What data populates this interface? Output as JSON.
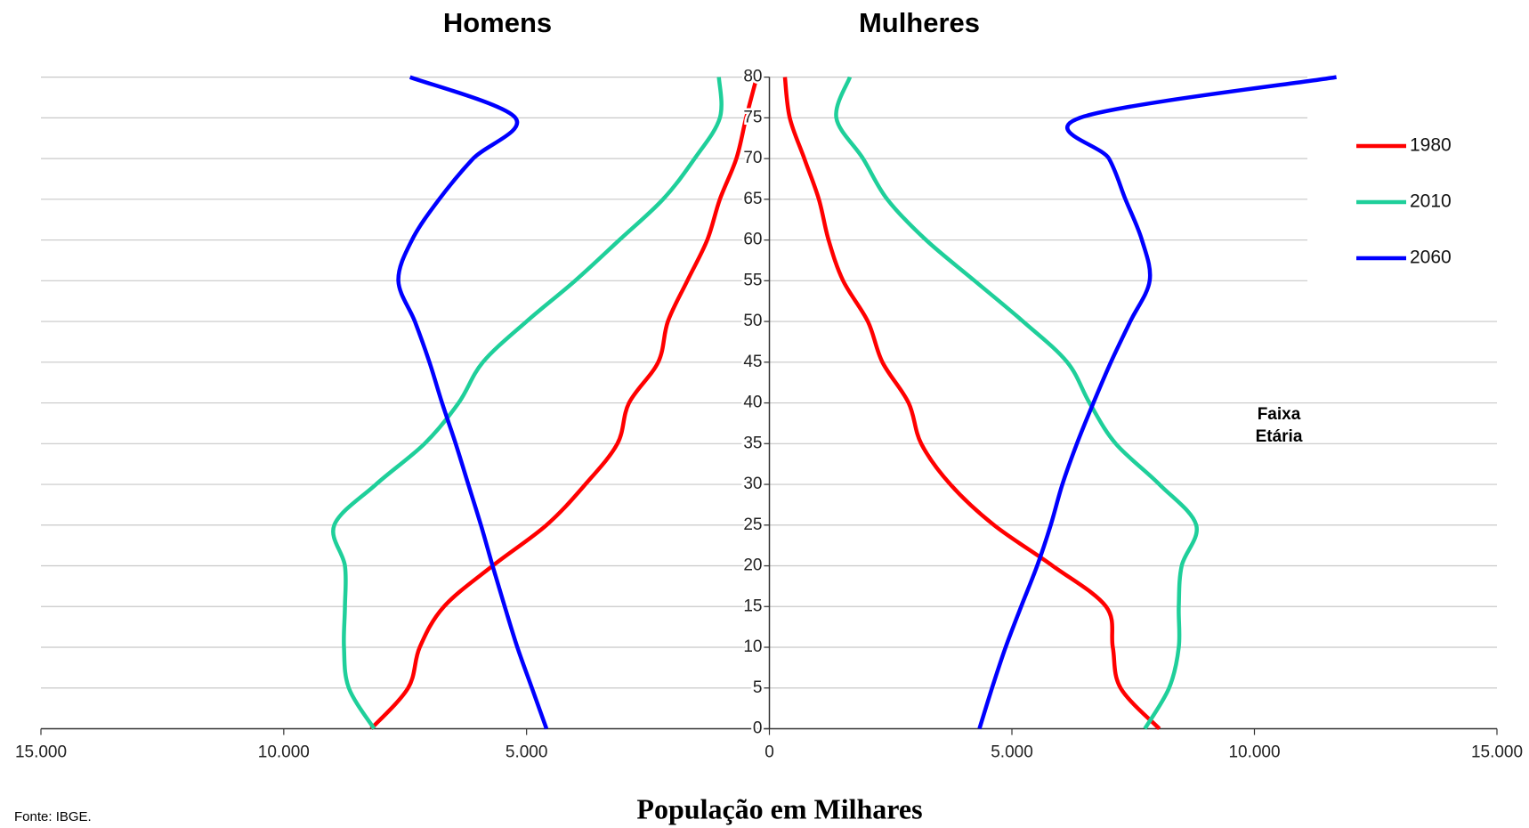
{
  "chart_data": [
    {
      "type": "line",
      "title": "Homens",
      "xlim": [
        15000,
        0
      ],
      "ylim": [
        0,
        80
      ],
      "xticks": [
        {
          "value": 15000,
          "label": "15.000"
        },
        {
          "value": 10000,
          "label": "10.000"
        },
        {
          "value": 5000,
          "label": "5.000"
        },
        0
      ],
      "yticks": [
        0,
        5,
        10,
        15,
        20,
        25,
        30,
        35,
        40,
        45,
        50,
        55,
        60,
        65,
        70,
        75,
        80
      ],
      "grid": true,
      "y": [
        0,
        5,
        10,
        15,
        20,
        25,
        30,
        35,
        40,
        45,
        50,
        55,
        60,
        65,
        70,
        75,
        80
      ],
      "series": [
        {
          "color": "#ff0000",
          "values": [
            8200,
            7440,
            7200,
            6700,
            5700,
            4590,
            3790,
            3130,
            2890,
            2290,
            2090,
            1690,
            1280,
            1020,
            680,
            480,
            260
          ]
        },
        {
          "color": "#1fcf9a",
          "values": [
            8140,
            8660,
            8760,
            8740,
            8740,
            8960,
            8100,
            7100,
            6400,
            5900,
            5000,
            4000,
            3090,
            2190,
            1540,
            1020,
            1040
          ]
        },
        {
          "color": "#0000ff",
          "values": [
            4590,
            4890,
            5190,
            5450,
            5700,
            5940,
            6200,
            6460,
            6740,
            7000,
            7300,
            7640,
            7360,
            6800,
            6100,
            5230,
            7400
          ]
        }
      ]
    },
    {
      "type": "line",
      "title": "Mulheres",
      "xlim": [
        0,
        15000
      ],
      "ylim": [
        0,
        80
      ],
      "xticks": [
        {
          "value": 5000,
          "label": "5.000"
        },
        {
          "value": 10000,
          "label": "10.000"
        },
        {
          "value": 15000,
          "label": "15.000"
        }
      ],
      "y": [
        0,
        5,
        10,
        15,
        20,
        25,
        30,
        35,
        40,
        45,
        50,
        55,
        60,
        65,
        70,
        75,
        80
      ],
      "legend": "upper right",
      "series": [
        {
          "name": "1980",
          "color": "#ff0000",
          "values": [
            8040,
            7240,
            7080,
            6940,
            5840,
            4630,
            3730,
            3130,
            2870,
            2330,
            2030,
            1520,
            1220,
            1020,
            720,
            420,
            320
          ]
        },
        {
          "name": "2010",
          "color": "#1fcf9a",
          "values": [
            7740,
            8240,
            8440,
            8440,
            8500,
            8800,
            8040,
            7140,
            6600,
            6140,
            5230,
            4230,
            3230,
            2430,
            1930,
            1380,
            1660
          ]
        },
        {
          "name": "2060",
          "color": "#0000ff",
          "values": [
            4330,
            4590,
            4870,
            5190,
            5520,
            5800,
            6040,
            6340,
            6680,
            7040,
            7440,
            7840,
            7680,
            7340,
            7000,
            6400,
            11690
          ]
        }
      ]
    }
  ],
  "ylabel": "Faixa Etária",
  "xlabel": "População em Milhares",
  "source": "Fonte: IBGE."
}
